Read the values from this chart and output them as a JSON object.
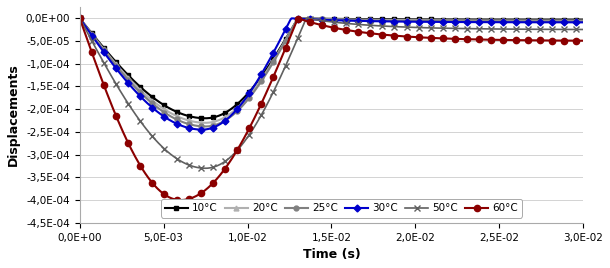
{
  "title": "",
  "xlabel": "Time (s)",
  "ylabel": "Displacements",
  "xlim": [
    0,
    0.03
  ],
  "ylim": [
    -0.00045,
    2.5e-05
  ],
  "xticks": [
    0.0,
    0.005,
    0.01,
    0.015,
    0.02,
    0.025,
    0.03
  ],
  "yticks": [
    0.0,
    -5e-05,
    -0.0001,
    -0.00015,
    -0.0002,
    -0.00025,
    -0.0003,
    -0.00035,
    -0.0004,
    -0.00045
  ],
  "series": [
    {
      "label": "10°C",
      "color": "#000000",
      "marker": "s",
      "markersize": 3.5,
      "linewidth": 1.5,
      "peak": -0.00022,
      "peak_time": 0.0075,
      "rise_time": 0.0055,
      "asymp": -3e-06
    },
    {
      "label": "20°C",
      "color": "#b0b0b0",
      "marker": "^",
      "markersize": 3.5,
      "linewidth": 1.5,
      "peak": -0.00023,
      "peak_time": 0.0075,
      "rise_time": 0.0055,
      "asymp": -5e-06
    },
    {
      "label": "25°C",
      "color": "#808080",
      "marker": "o",
      "markersize": 3.5,
      "linewidth": 1.5,
      "peak": -0.000238,
      "peak_time": 0.0075,
      "rise_time": 0.0055,
      "asymp": -7e-06
    },
    {
      "label": "30°C",
      "color": "#0000cc",
      "marker": "D",
      "markersize": 3.5,
      "linewidth": 1.5,
      "peak": -0.000245,
      "peak_time": 0.0073,
      "rise_time": 0.0053,
      "asymp": -9e-06
    },
    {
      "label": "50°C",
      "color": "#606060",
      "marker": "x",
      "markersize": 5,
      "linewidth": 1.2,
      "peak": -0.00033,
      "peak_time": 0.0075,
      "rise_time": 0.006,
      "asymp": -2.5e-05
    },
    {
      "label": "60°C",
      "color": "#8b0000",
      "marker": "o",
      "markersize": 4.5,
      "linewidth": 1.5,
      "peak": -0.0004,
      "peak_time": 0.006,
      "rise_time": 0.007,
      "asymp": -5e-05
    }
  ],
  "background_color": "#ffffff",
  "grid_color": "#cccccc"
}
